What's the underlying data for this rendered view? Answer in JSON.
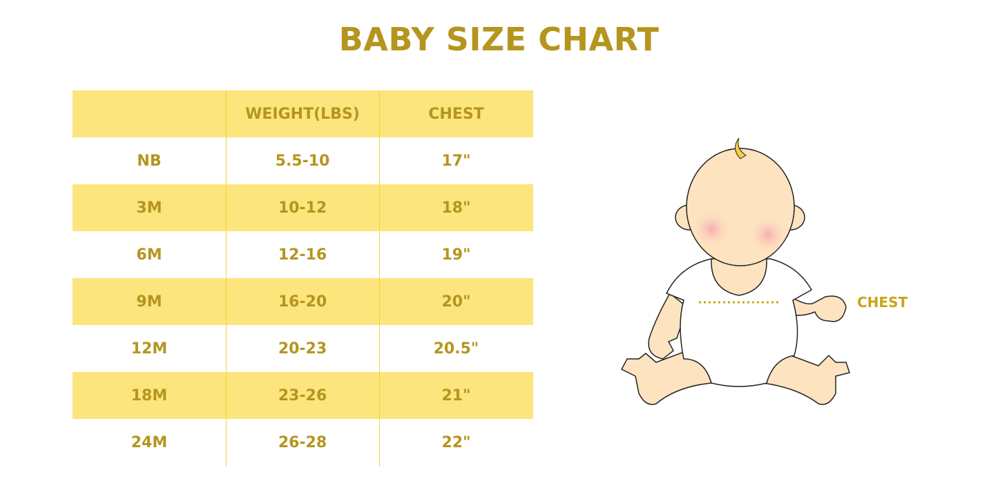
{
  "title": "BABY SIZE CHART",
  "table": {
    "headers": [
      "",
      "WEIGHT(LBS)",
      "CHEST"
    ],
    "rows": [
      [
        "NB",
        "5.5-10",
        "17\""
      ],
      [
        "3M",
        "10-12",
        "18\""
      ],
      [
        "6M",
        "12-16",
        "19\""
      ],
      [
        "9M",
        "16-20",
        "20\""
      ],
      [
        "12M",
        "20-23",
        "20.5\""
      ],
      [
        "18M",
        "23-26",
        "21\""
      ],
      [
        "24M",
        "26-28",
        "22\""
      ]
    ]
  },
  "illustration": {
    "chest_label": "CHEST"
  },
  "colors": {
    "accent": "#b5951f",
    "stripe": "#fbe57c",
    "divider": "#f5d23a"
  }
}
